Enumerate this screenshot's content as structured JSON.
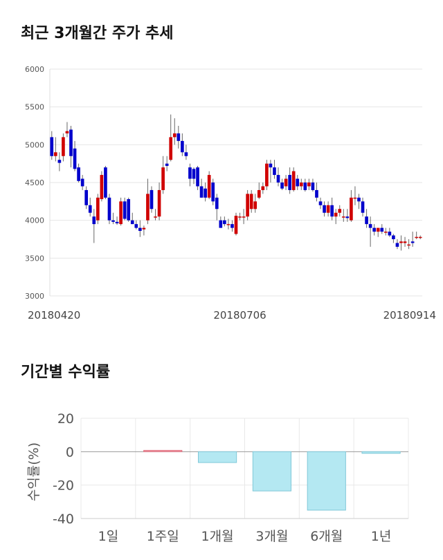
{
  "sections": {
    "price_title": "최근 3개월간 주가 추세",
    "return_title": "기간별 수익률"
  },
  "chart_data": [
    {
      "type": "candlestick",
      "ylim": [
        3000,
        6000
      ],
      "yticks": [
        3000,
        3500,
        4000,
        4500,
        5000,
        5500,
        6000
      ],
      "xtick_labels": [
        {
          "label": "20180420",
          "index": 0
        },
        {
          "label": "20180706",
          "index": 49
        },
        {
          "label": "20180914",
          "index": 98
        }
      ],
      "colors": {
        "up": "#d00000",
        "down": "#0000cc"
      },
      "candles": [
        [
          5100,
          5180,
          4800,
          4850
        ],
        [
          4850,
          5100,
          4780,
          4900
        ],
        [
          4800,
          4900,
          4650,
          4760
        ],
        [
          4850,
          5150,
          4780,
          5100
        ],
        [
          5150,
          5300,
          5100,
          5180
        ],
        [
          5200,
          5250,
          4700,
          4850
        ],
        [
          4950,
          5050,
          4650,
          4680
        ],
        [
          4700,
          4750,
          4500,
          4520
        ],
        [
          4550,
          4600,
          4400,
          4450
        ],
        [
          4400,
          4450,
          4150,
          4200
        ],
        [
          4200,
          4300,
          4050,
          4100
        ],
        [
          4050,
          4150,
          3700,
          3950
        ],
        [
          4000,
          4350,
          3950,
          4300
        ],
        [
          4280,
          4650,
          4250,
          4600
        ],
        [
          4700,
          4720,
          4280,
          4300
        ],
        [
          4300,
          4350,
          3950,
          4000
        ],
        [
          4000,
          4100,
          3950,
          3980
        ],
        [
          3980,
          4050,
          3940,
          3960
        ],
        [
          3950,
          4300,
          3930,
          4250
        ],
        [
          4250,
          4300,
          4000,
          4020
        ],
        [
          4280,
          4300,
          3980,
          4000
        ],
        [
          4000,
          4100,
          3950,
          3950
        ],
        [
          3950,
          4000,
          3880,
          3900
        ],
        [
          3900,
          4000,
          3780,
          3860
        ],
        [
          3880,
          3930,
          3800,
          3900
        ],
        [
          4000,
          4550,
          3950,
          4350
        ],
        [
          4400,
          4450,
          4100,
          4150
        ],
        [
          4050,
          4150,
          4000,
          4050
        ],
        [
          4050,
          4500,
          4000,
          4400
        ],
        [
          4400,
          4850,
          4350,
          4700
        ],
        [
          4750,
          4850,
          4650,
          4720
        ],
        [
          4800,
          5400,
          4780,
          5100
        ],
        [
          5100,
          5350,
          5000,
          5150
        ],
        [
          5150,
          5250,
          4950,
          5050
        ],
        [
          5050,
          5150,
          4850,
          4900
        ],
        [
          4900,
          5000,
          4800,
          4850
        ],
        [
          4700,
          4750,
          4450,
          4550
        ],
        [
          4680,
          4700,
          4480,
          4550
        ],
        [
          4700,
          4720,
          4400,
          4450
        ],
        [
          4450,
          4550,
          4300,
          4300
        ],
        [
          4420,
          4500,
          4250,
          4300
        ],
        [
          4300,
          4650,
          4280,
          4600
        ],
        [
          4500,
          4550,
          4200,
          4250
        ],
        [
          4300,
          4350,
          4000,
          4150
        ],
        [
          4000,
          4050,
          3900,
          3900
        ],
        [
          4000,
          4050,
          3920,
          3950
        ],
        [
          3950,
          4020,
          3880,
          3950
        ],
        [
          3950,
          4000,
          3850,
          3900
        ],
        [
          3820,
          4100,
          3800,
          4060
        ],
        [
          4050,
          4100,
          4000,
          4050
        ],
        [
          4050,
          4150,
          3950,
          4050
        ],
        [
          4050,
          4400,
          4000,
          4350
        ],
        [
          4150,
          4400,
          4100,
          4350
        ],
        [
          4150,
          4350,
          4100,
          4250
        ],
        [
          4300,
          4500,
          4280,
          4400
        ],
        [
          4400,
          4500,
          4350,
          4450
        ],
        [
          4450,
          4800,
          4400,
          4750
        ],
        [
          4750,
          4800,
          4500,
          4700
        ],
        [
          4700,
          4800,
          4550,
          4600
        ],
        [
          4600,
          4700,
          4450,
          4500
        ],
        [
          4500,
          4550,
          4400,
          4420
        ],
        [
          4450,
          4600,
          4400,
          4550
        ],
        [
          4600,
          4700,
          4350,
          4400
        ],
        [
          4400,
          4700,
          4380,
          4650
        ],
        [
          4550,
          4600,
          4400,
          4450
        ],
        [
          4450,
          4550,
          4400,
          4500
        ],
        [
          4500,
          4550,
          4380,
          4400
        ],
        [
          4450,
          4550,
          4400,
          4500
        ],
        [
          4500,
          4550,
          4380,
          4400
        ],
        [
          4400,
          4500,
          4250,
          4300
        ],
        [
          4250,
          4300,
          4150,
          4200
        ],
        [
          4200,
          4250,
          4050,
          4100
        ],
        [
          4100,
          4250,
          4050,
          4200
        ],
        [
          4200,
          4300,
          4000,
          4050
        ],
        [
          4050,
          4150,
          3950,
          4100
        ],
        [
          4100,
          4200,
          4050,
          4150
        ],
        [
          4050,
          4150,
          3980,
          4050
        ],
        [
          4050,
          4150,
          3980,
          4030
        ],
        [
          4000,
          4400,
          3980,
          4300
        ],
        [
          4300,
          4450,
          4200,
          4300
        ],
        [
          4300,
          4350,
          4150,
          4250
        ],
        [
          4250,
          4300,
          4050,
          4100
        ],
        [
          4050,
          4150,
          3900,
          3950
        ],
        [
          3950,
          4050,
          3650,
          3900
        ],
        [
          3900,
          3950,
          3800,
          3850
        ],
        [
          3850,
          3900,
          3780,
          3900
        ],
        [
          3900,
          3950,
          3820,
          3850
        ],
        [
          3850,
          3900,
          3800,
          3850
        ],
        [
          3850,
          3900,
          3780,
          3800
        ],
        [
          3800,
          3820,
          3700,
          3750
        ],
        [
          3700,
          3750,
          3620,
          3650
        ],
        [
          3700,
          3800,
          3600,
          3720
        ],
        [
          3700,
          3780,
          3650,
          3720
        ],
        [
          3680,
          3750,
          3620,
          3680
        ],
        [
          3720,
          3850,
          3650,
          3700
        ],
        [
          3780,
          3850,
          3750,
          3780
        ],
        [
          3780,
          3800,
          3750,
          3780
        ]
      ]
    },
    {
      "type": "bar",
      "categories": [
        "1일",
        "1주일",
        "1개월",
        "3개월",
        "6개월",
        "1년"
      ],
      "values": [
        0,
        0.8,
        -6.5,
        -23.5,
        -35,
        -1
      ],
      "ylabel": "수익률(%)",
      "ylim": [
        -40,
        20
      ],
      "yticks": [
        20,
        0,
        -20,
        -40
      ],
      "colors": {
        "positive": "#f4a0a8",
        "negative": "#b4e8f2",
        "positive_edge": "#e07080",
        "negative_edge": "#80c8d8"
      }
    }
  ]
}
